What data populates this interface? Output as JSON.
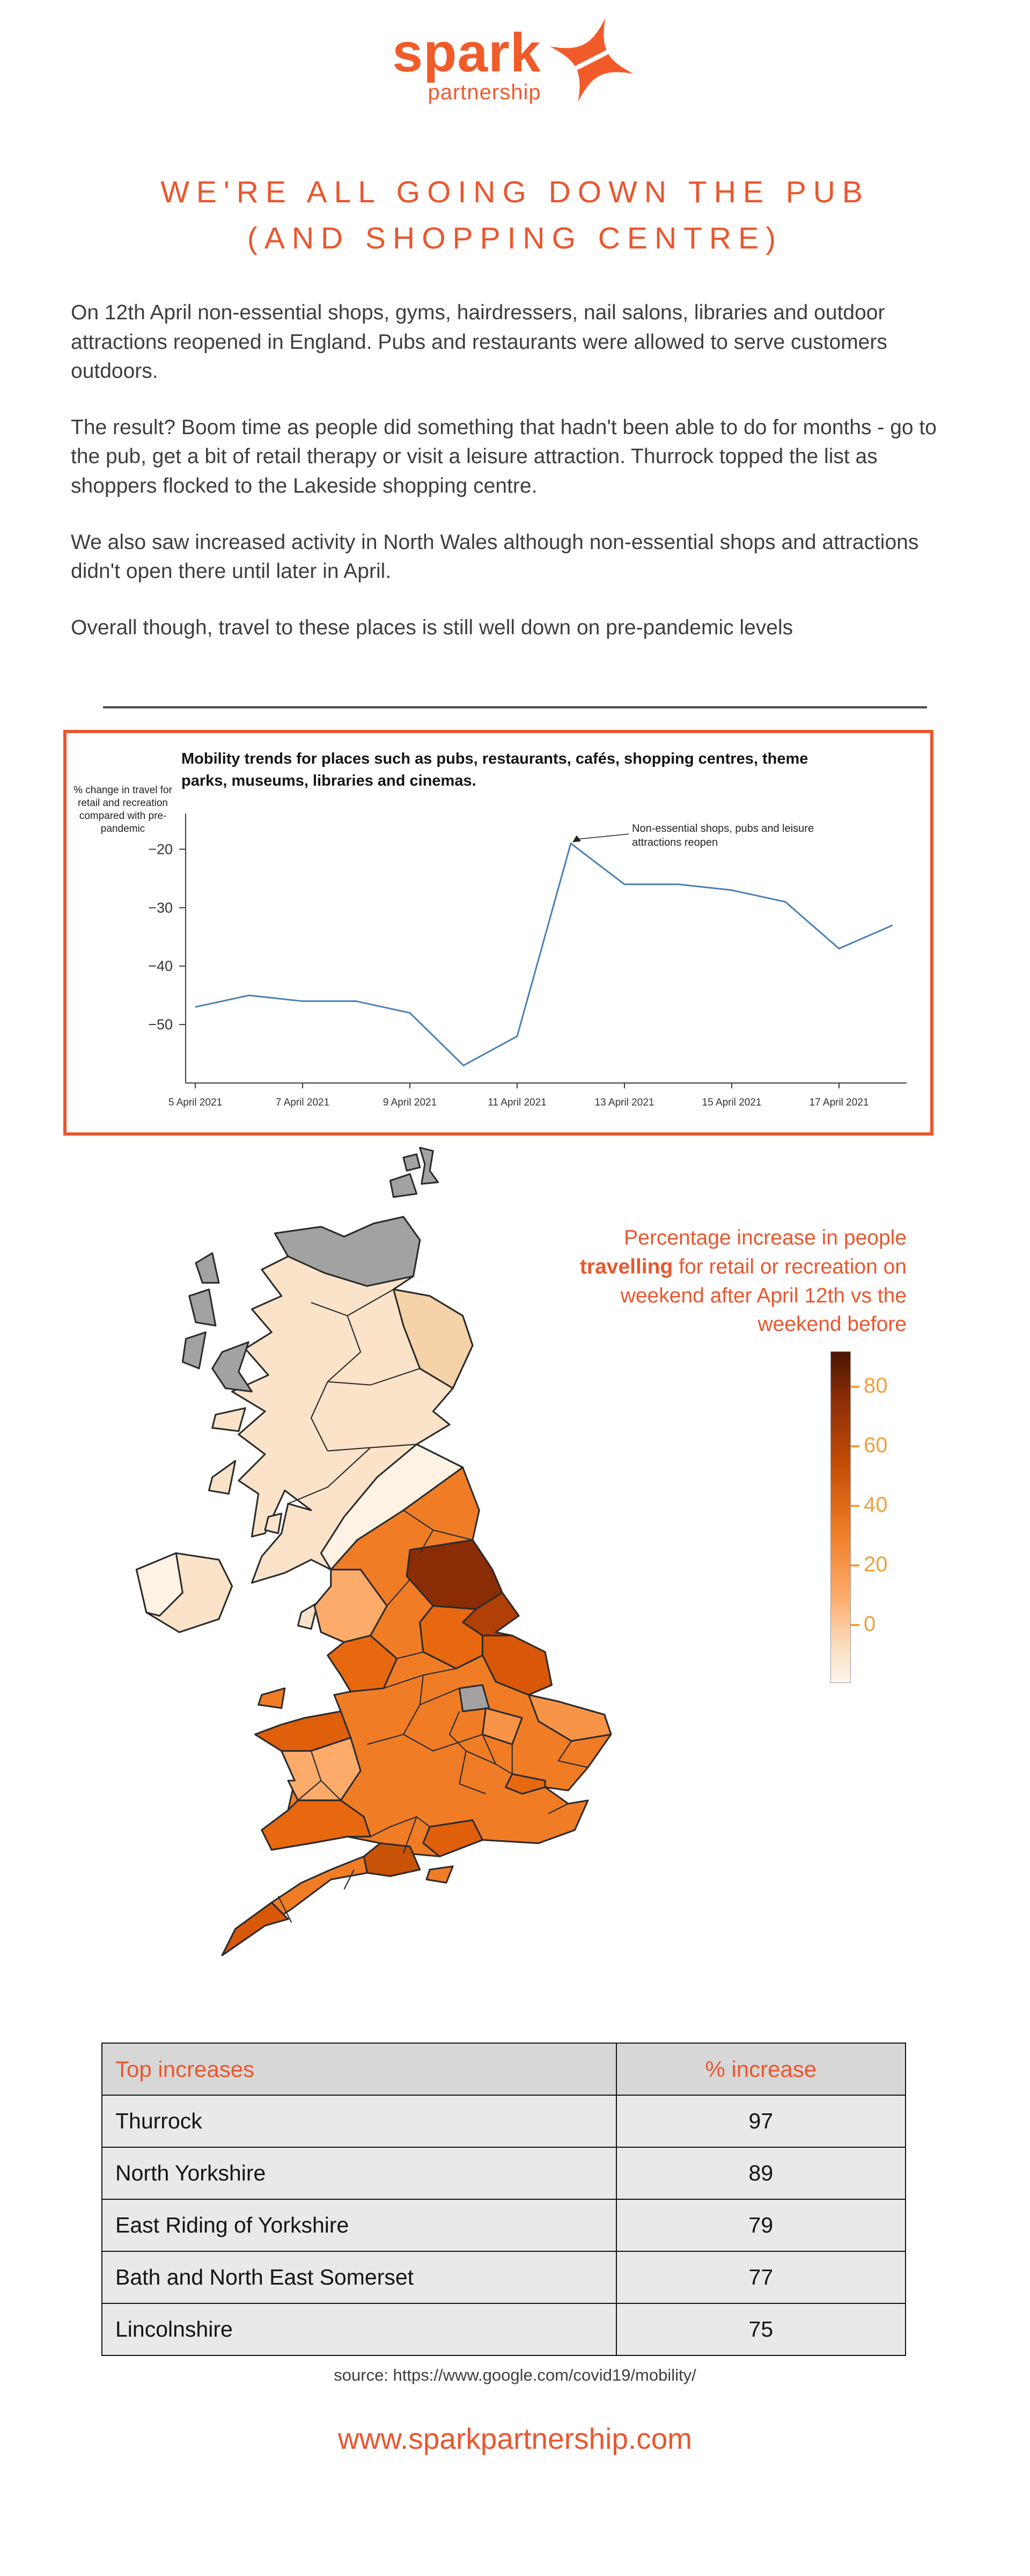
{
  "brand": {
    "name_main": "spark",
    "name_sub": "partnership"
  },
  "title": {
    "line1": "WE'RE ALL GOING DOWN THE PUB",
    "line2": "(AND SHOPPING CENTRE)"
  },
  "paragraphs": [
    "On 12th April non-essential shops, gyms, hairdressers, nail salons, libraries and outdoor attractions reopened in England. Pubs and restaurants were allowed to serve customers outdoors.",
    "The result? Boom time as people did something that hadn't been able to do for months - go to the pub, get a bit of retail therapy or visit a leisure attraction. Thurrock topped the list as shoppers flocked to the Lakeside shopping centre.",
    "We also saw increased activity in North Wales although non-essential shops and attractions didn't open there until later in April.",
    "Overall though, travel to these places is still well down on pre-pandemic levels"
  ],
  "chart_data": {
    "type": "line",
    "title": "Mobility trends for places such as pubs, restaurants, cafés, shopping centres, theme parks, museums, libraries and cinemas.",
    "ylabel": "% change in travel for retail and recreation compared with pre-pandemic",
    "ylabel_lines": [
      "% change in travel for",
      "retail and recreation",
      "compared with pre-",
      "pandemic"
    ],
    "x": [
      "5 Apr 2021",
      "6 Apr 2021",
      "7 Apr 2021",
      "8 Apr 2021",
      "9 Apr 2021",
      "10 Apr 2021",
      "11 Apr 2021",
      "12 Apr 2021",
      "13 Apr 2021",
      "14 Apr 2021",
      "15 Apr 2021",
      "16 Apr 2021",
      "17 Apr 2021",
      "18 Apr 2021"
    ],
    "values": [
      -47,
      -45,
      -46,
      -46,
      -48,
      -57,
      -52,
      -19,
      -26,
      -26,
      -27,
      -29,
      -37,
      -33
    ],
    "x_tick_labels": [
      "5 April 2021",
      "7 April 2021",
      "9 April 2021",
      "11 April 2021",
      "13 April 2021",
      "15 April 2021",
      "17 April 2021"
    ],
    "y_ticks": [
      -20,
      -30,
      -40,
      -50
    ],
    "ylim": [
      -60,
      -15
    ],
    "grid": false,
    "legend_position": "none",
    "line_color": "#4a80b5",
    "annotation": "Non-essential shops, pubs and leisure attractions reopen",
    "annotation_lines": [
      "Non-essential shops, pubs and leisure",
      "attractions reopen"
    ]
  },
  "map": {
    "caption_part1": "Percentage increase in people ",
    "caption_bold": "travelling",
    "caption_part2": " for retail or recreation on weekend after April 12th vs the weekend before",
    "legend_ticks": [
      "80",
      "60",
      "40",
      "20",
      "0"
    ],
    "colors": {
      "lowest": "#fdf2e3",
      "low": "#fcab6b",
      "mid": "#f07d26",
      "high": "#d95708",
      "highest": "#8a2d06",
      "no_data": "#a2a2a2",
      "legend_gradient": [
        "#4d1503",
        "#8a2d06",
        "#c44d05",
        "#f07e26",
        "#fcab6b",
        "#fbe0c3",
        "#fdf4ec"
      ]
    }
  },
  "table": {
    "headers": [
      "Top increases",
      "% increase"
    ],
    "rows": [
      {
        "name": "Thurrock",
        "value": "97"
      },
      {
        "name": "North Yorkshire",
        "value": "89"
      },
      {
        "name": "East Riding of Yorkshire",
        "value": "79"
      },
      {
        "name": "Bath and North East Somerset",
        "value": "77"
      },
      {
        "name": "Lincolnshire",
        "value": "75"
      }
    ]
  },
  "source": "source:  https://www.google.com/covid19/mobility/",
  "footer": "www.sparkpartnership.com",
  "accent_color": "#e9572e"
}
